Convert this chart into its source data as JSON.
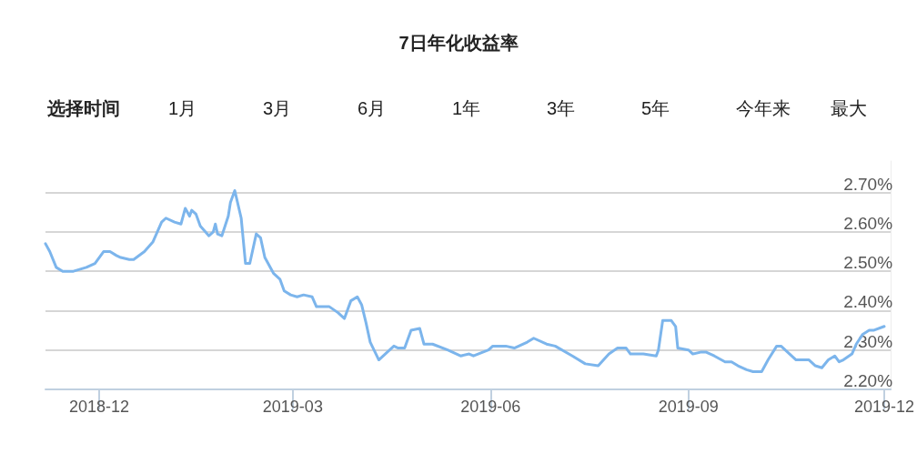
{
  "chart_data": {
    "type": "line",
    "title": "7日年化收益率",
    "annotations": [
      "选择时间",
      "1月",
      "3月",
      "6月",
      "1年",
      "3年",
      "5年",
      "今年来",
      "最大"
    ],
    "x": [
      "2018-11-06",
      "2018-11-08",
      "2018-11-11",
      "2018-11-14",
      "2018-11-19",
      "2018-11-25",
      "2018-11-29",
      "2018-12-03",
      "2018-12-06",
      "2018-12-09",
      "2018-12-11",
      "2018-12-15",
      "2018-12-17",
      "2018-12-22",
      "2018-12-26",
      "2018-12-30",
      "2019-01-01",
      "2019-01-05",
      "2019-01-08",
      "2019-01-10",
      "2019-01-12",
      "2019-01-13",
      "2019-01-15",
      "2019-01-17",
      "2019-01-21",
      "2019-01-23",
      "2019-01-24",
      "2019-01-25",
      "2019-01-27",
      "2019-01-30",
      "2019-01-31",
      "2019-02-02",
      "2019-02-05",
      "2019-02-07",
      "2019-02-09",
      "2019-02-12",
      "2019-02-14",
      "2019-02-16",
      "2019-02-20",
      "2019-02-23",
      "2019-02-25",
      "2019-02-28",
      "2019-03-03",
      "2019-03-06",
      "2019-03-10",
      "2019-03-12",
      "2019-03-15",
      "2019-03-18",
      "2019-03-22",
      "2019-03-25",
      "2019-03-28",
      "2019-03-31",
      "2019-04-02",
      "2019-04-04",
      "2019-04-06",
      "2019-04-10",
      "2019-04-14",
      "2019-04-17",
      "2019-04-19",
      "2019-04-22",
      "2019-04-25",
      "2019-04-29",
      "2019-05-01",
      "2019-05-05",
      "2019-05-12",
      "2019-05-18",
      "2019-05-22",
      "2019-05-24",
      "2019-05-31",
      "2019-06-02",
      "2019-06-08",
      "2019-06-12",
      "2019-06-18",
      "2019-06-21",
      "2019-06-27",
      "2019-07-01",
      "2019-07-09",
      "2019-07-15",
      "2019-07-21",
      "2019-07-26",
      "2019-07-30",
      "2019-08-03",
      "2019-08-05",
      "2019-08-11",
      "2019-08-17",
      "2019-08-18",
      "2019-08-20",
      "2019-08-24",
      "2019-08-26",
      "2019-08-27",
      "2019-09-01",
      "2019-09-03",
      "2019-09-07",
      "2019-09-09",
      "2019-09-13",
      "2019-09-18",
      "2019-09-21",
      "2019-09-24",
      "2019-09-28",
      "2019-10-01",
      "2019-10-05",
      "2019-10-08",
      "2019-10-12",
      "2019-10-14",
      "2019-10-21",
      "2019-10-27",
      "2019-10-30",
      "2019-11-02",
      "2019-11-05",
      "2019-11-08",
      "2019-11-10",
      "2019-11-12",
      "2019-11-16",
      "2019-11-18",
      "2019-11-21",
      "2019-11-24",
      "2019-11-26",
      "2019-12-01"
    ],
    "series": [
      {
        "color": "#7cb5ec",
        "values": [
          2.57,
          2.55,
          2.51,
          2.5,
          2.5,
          2.51,
          2.52,
          2.55,
          2.55,
          2.54,
          2.535,
          2.53,
          2.53,
          2.55,
          2.575,
          2.625,
          2.635,
          2.625,
          2.62,
          2.66,
          2.64,
          2.655,
          2.645,
          2.615,
          2.59,
          2.6,
          2.62,
          2.595,
          2.59,
          2.64,
          2.675,
          2.705,
          2.635,
          2.52,
          2.52,
          2.595,
          2.585,
          2.535,
          2.495,
          2.48,
          2.45,
          2.44,
          2.435,
          2.44,
          2.435,
          2.41,
          2.41,
          2.41,
          2.395,
          2.38,
          2.425,
          2.435,
          2.415,
          2.37,
          2.32,
          2.275,
          2.295,
          2.31,
          2.305,
          2.305,
          2.35,
          2.355,
          2.315,
          2.315,
          2.3,
          2.285,
          2.29,
          2.285,
          2.3,
          2.31,
          2.31,
          2.305,
          2.32,
          2.33,
          2.315,
          2.31,
          2.285,
          2.265,
          2.26,
          2.29,
          2.305,
          2.305,
          2.29,
          2.29,
          2.285,
          2.3,
          2.375,
          2.375,
          2.36,
          2.305,
          2.3,
          2.29,
          2.295,
          2.295,
          2.285,
          2.27,
          2.27,
          2.26,
          2.25,
          2.245,
          2.245,
          2.275,
          2.31,
          2.31,
          2.275,
          2.275,
          2.26,
          2.255,
          2.275,
          2.285,
          2.27,
          2.275,
          2.29,
          2.315,
          2.34,
          2.35,
          2.35,
          2.36
        ]
      }
    ],
    "xlim": [
      "2018-11-06",
      "2019-12-04"
    ],
    "xticks": [
      "2018-12",
      "2019-03",
      "2019-06",
      "2019-09",
      "2019-12"
    ],
    "ylim": [
      2.2,
      2.78
    ],
    "yticks": [
      {
        "value": 2.2,
        "label": "2.20%"
      },
      {
        "value": 2.3,
        "label": "2.30%"
      },
      {
        "value": 2.4,
        "label": "2.40%"
      },
      {
        "value": 2.5,
        "label": "2.50%"
      },
      {
        "value": 2.6,
        "label": "2.60%"
      },
      {
        "value": 2.7,
        "label": "2.70%"
      }
    ],
    "grid": "y"
  }
}
